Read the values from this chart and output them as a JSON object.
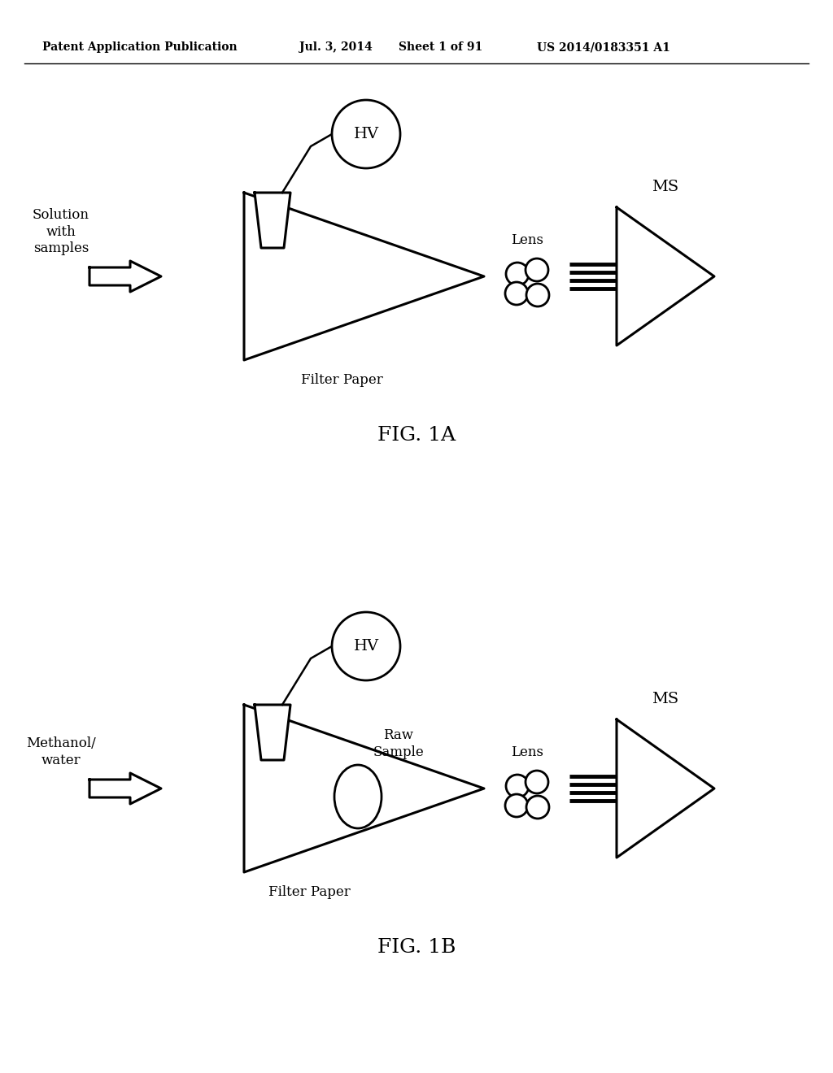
{
  "background_color": "#ffffff",
  "header_text": "Patent Application Publication",
  "header_date": "Jul. 3, 2014",
  "header_sheet": "Sheet 1 of 91",
  "header_patent": "US 2014/0183351 A1",
  "header_fontsize": 10,
  "fig1a_label": "FIG. 1A",
  "fig1b_label": "FIG. 1B",
  "fig1a_solution_label": "Solution\nwith\nsamples",
  "fig1a_filter_label": "Filter Paper",
  "fig1a_lens_label": "Lens",
  "fig1a_ms_label": "MS",
  "fig1a_hv_label": "HV",
  "fig1b_solution_label": "Methanol/\nwater",
  "fig1b_filter_label": "Filter Paper",
  "fig1b_lens_label": "Lens",
  "fig1b_ms_label": "MS",
  "fig1b_hv_label": "HV",
  "fig1b_sample_label": "Raw\nSample"
}
